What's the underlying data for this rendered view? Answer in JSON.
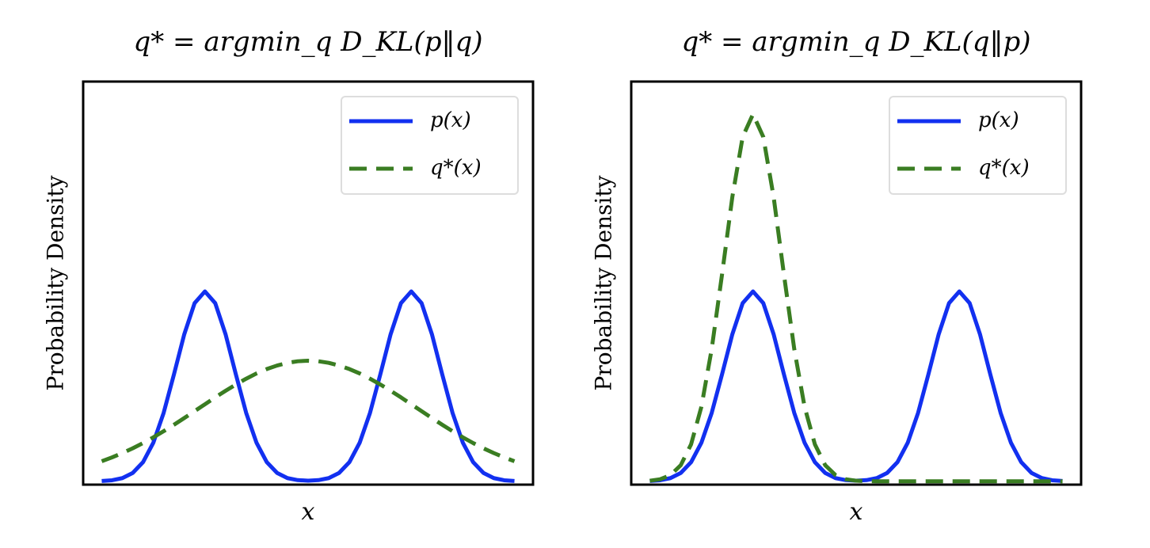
{
  "chart_data": [
    {
      "type": "line",
      "title": "q* = argmin_q D_KL(p‖q)",
      "xlabel": "x",
      "ylabel": "Probability Density",
      "legend": "upper right",
      "grid": false,
      "xlim": [
        -5.45,
        5.45
      ],
      "ylim": [
        -0.005,
        0.6
      ],
      "x": [
        -5,
        -4.75,
        -4.5,
        -4.25,
        -4,
        -3.75,
        -3.5,
        -3.25,
        -3,
        -2.75,
        -2.5,
        -2.25,
        -2,
        -1.75,
        -1.5,
        -1.25,
        -1,
        -0.75,
        -0.5,
        -0.25,
        0,
        0.25,
        0.5,
        0.75,
        1,
        1.25,
        1.5,
        1.75,
        2,
        2.25,
        2.5,
        2.75,
        3,
        3.25,
        3.5,
        3.75,
        4,
        4.25,
        4.5,
        4.75,
        5
      ],
      "series": [
        {
          "name": "p(x)",
          "color": "#1230f0",
          "style": "solid",
          "values": [
            0.0005,
            0.0016,
            0.0048,
            0.0125,
            0.0287,
            0.0579,
            0.1027,
            0.1605,
            0.2208,
            0.2674,
            0.285,
            0.2674,
            0.2208,
            0.1605,
            0.1027,
            0.0579,
            0.0287,
            0.0125,
            0.0048,
            0.0018,
            0.001,
            0.0018,
            0.0048,
            0.0125,
            0.0287,
            0.0579,
            0.1027,
            0.1605,
            0.2208,
            0.2674,
            0.285,
            0.2674,
            0.2208,
            0.1605,
            0.1027,
            0.0579,
            0.0287,
            0.0125,
            0.0048,
            0.0016,
            0.0005
          ]
        },
        {
          "name": "q*(x)",
          "color": "#3a7d22",
          "style": "dashed",
          "values": [
            0.0301,
            0.0359,
            0.0424,
            0.0495,
            0.0574,
            0.066,
            0.0752,
            0.0849,
            0.095,
            0.1053,
            0.1156,
            0.126,
            0.1359,
            0.1453,
            0.154,
            0.1619,
            0.1685,
            0.1738,
            0.1778,
            0.1802,
            0.181,
            0.1802,
            0.1778,
            0.1738,
            0.1685,
            0.1619,
            0.154,
            0.1453,
            0.1359,
            0.126,
            0.1156,
            0.1053,
            0.095,
            0.0849,
            0.0752,
            0.066,
            0.0574,
            0.0495,
            0.0424,
            0.0359,
            0.0301
          ]
        }
      ]
    },
    {
      "type": "line",
      "title": "q* = argmin_q D_KL(q‖p)",
      "xlabel": "x",
      "ylabel": "Probability Density",
      "legend": "upper right",
      "grid": false,
      "xlim": [
        -5.45,
        5.45
      ],
      "ylim": [
        -0.005,
        0.6
      ],
      "x": [
        -5,
        -4.75,
        -4.5,
        -4.25,
        -4,
        -3.75,
        -3.5,
        -3.25,
        -3,
        -2.75,
        -2.5,
        -2.25,
        -2,
        -1.75,
        -1.5,
        -1.25,
        -1,
        -0.75,
        -0.5,
        -0.25,
        0,
        0.25,
        0.5,
        0.75,
        1,
        1.25,
        1.5,
        1.75,
        2,
        2.25,
        2.5,
        2.75,
        3,
        3.25,
        3.5,
        3.75,
        4,
        4.25,
        4.5,
        4.75,
        5
      ],
      "series": [
        {
          "name": "p(x)",
          "color": "#1230f0",
          "style": "solid",
          "values": [
            0.0005,
            0.0016,
            0.0048,
            0.0125,
            0.0287,
            0.0579,
            0.1027,
            0.1605,
            0.2208,
            0.2674,
            0.285,
            0.2674,
            0.2208,
            0.1605,
            0.1027,
            0.0579,
            0.0287,
            0.0125,
            0.0048,
            0.0018,
            0.001,
            0.0018,
            0.0048,
            0.0125,
            0.0287,
            0.0579,
            0.1027,
            0.1605,
            0.2208,
            0.2674,
            0.285,
            0.2674,
            0.2208,
            0.1605,
            0.1027,
            0.0579,
            0.0287,
            0.0125,
            0.0048,
            0.0016,
            0.0005
          ]
        },
        {
          "name": "q*(x)",
          "color": "#3a7d22",
          "style": "dashed",
          "values": [
            0.0009,
            0.0031,
            0.0093,
            0.0242,
            0.0555,
            0.1119,
            0.1986,
            0.3104,
            0.4269,
            0.5169,
            0.551,
            0.5169,
            0.4269,
            0.3104,
            0.1986,
            0.1119,
            0.0555,
            0.0242,
            0.0093,
            0.0031,
            0.0009,
            0.0002,
            0.0001,
            0,
            0,
            0,
            0,
            0,
            0,
            0,
            0,
            0,
            0,
            0,
            0,
            0,
            0,
            0,
            0,
            0,
            0
          ]
        }
      ]
    }
  ]
}
